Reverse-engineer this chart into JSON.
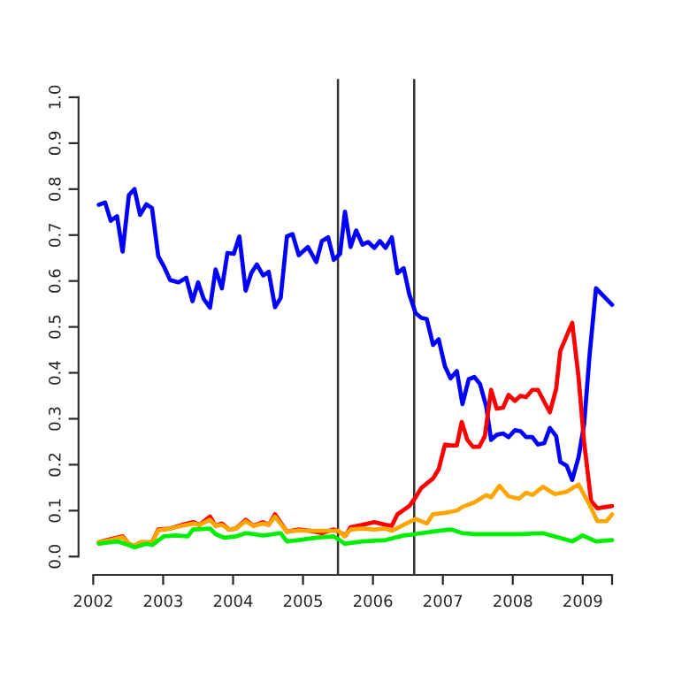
{
  "chart_data": {
    "type": "line",
    "xlim": [
      2001.79,
      2009.42
    ],
    "ylim": [
      -0.04,
      1.04
    ],
    "xticks": [
      2002,
      2003,
      2004,
      2005,
      2006,
      2007,
      2008,
      2009,
      {
        "value": 2009.42,
        "label": null
      }
    ],
    "yticks": [
      {
        "value": 0,
        "label": "0.0"
      },
      {
        "value": 0.1,
        "label": "0.1"
      },
      {
        "value": 0.2,
        "label": "0.2"
      },
      {
        "value": 0.3,
        "label": "0.3"
      },
      {
        "value": 0.4,
        "label": "0.4"
      },
      {
        "value": 0.5,
        "label": "0.5"
      },
      {
        "value": 0.6,
        "label": "0.6"
      },
      {
        "value": 0.7,
        "label": "0.7"
      },
      {
        "value": 0.8,
        "label": "0.8"
      },
      {
        "value": 0.9,
        "label": "0.9"
      },
      {
        "value": 1,
        "label": "1.0"
      }
    ],
    "grid": false,
    "marker": "none",
    "line_style": "solid",
    "ref_lines": [
      {
        "axis": "x",
        "value": 2005.5,
        "color": "#333333"
      },
      {
        "axis": "x",
        "value": 2006.59,
        "color": "#333333"
      }
    ],
    "series": [
      {
        "color": "#0000ff",
        "x": [
          2002.08,
          2002.17,
          2002.25,
          2002.34,
          2002.42,
          2002.51,
          2002.59,
          2002.67,
          2002.76,
          2002.84,
          2002.93,
          2003.01,
          2003.1,
          2003.22,
          2003.33,
          2003.42,
          2003.5,
          2003.58,
          2003.67,
          2003.75,
          2003.84,
          2003.92,
          2004.01,
          2004.09,
          2004.18,
          2004.26,
          2004.34,
          2004.43,
          2004.51,
          2004.6,
          2004.68,
          2004.77,
          2004.85,
          2004.94,
          2005.07,
          2005.19,
          2005.27,
          2005.36,
          2005.44,
          2005.53,
          2005.6,
          2005.68,
          2005.76,
          2005.85,
          2005.93,
          2006.02,
          2006.1,
          2006.18,
          2006.27,
          2006.35,
          2006.44,
          2006.52,
          2006.61,
          2006.69,
          2006.77,
          2006.86,
          2006.94,
          2007.03,
          2007.11,
          2007.2,
          2007.28,
          2007.37,
          2007.45,
          2007.53,
          2007.62,
          2007.69,
          2007.77,
          2007.86,
          2007.94,
          2008.03,
          2008.11,
          2008.19,
          2008.28,
          2008.36,
          2008.45,
          2008.53,
          2008.62,
          2008.68,
          2008.77,
          2008.85,
          2008.94,
          2009.02,
          2009.1,
          2009.19,
          2009.42
        ],
        "values": [
          0.766,
          0.771,
          0.731,
          0.741,
          0.664,
          0.787,
          0.8,
          0.744,
          0.767,
          0.759,
          0.654,
          0.632,
          0.602,
          0.597,
          0.607,
          0.556,
          0.597,
          0.561,
          0.542,
          0.625,
          0.584,
          0.661,
          0.659,
          0.697,
          0.579,
          0.617,
          0.636,
          0.612,
          0.62,
          0.543,
          0.563,
          0.697,
          0.702,
          0.656,
          0.674,
          0.641,
          0.687,
          0.695,
          0.646,
          0.659,
          0.751,
          0.674,
          0.71,
          0.679,
          0.685,
          0.672,
          0.687,
          0.672,
          0.695,
          0.617,
          0.628,
          0.571,
          0.53,
          0.52,
          0.517,
          0.461,
          0.473,
          0.414,
          0.388,
          0.404,
          0.332,
          0.386,
          0.391,
          0.376,
          0.327,
          0.254,
          0.265,
          0.268,
          0.26,
          0.275,
          0.273,
          0.26,
          0.26,
          0.244,
          0.247,
          0.28,
          0.262,
          0.206,
          0.198,
          0.167,
          0.216,
          0.288,
          0.442,
          0.584,
          0.548
        ]
      },
      {
        "color": "#ff0000",
        "x": [
          2002.08,
          2002.25,
          2002.42,
          2002.51,
          2002.59,
          2002.67,
          2002.84,
          2002.93,
          2003.1,
          2003.27,
          2003.43,
          2003.52,
          2003.67,
          2003.75,
          2003.84,
          2003.94,
          2004.04,
          2004.18,
          2004.29,
          2004.43,
          2004.51,
          2004.6,
          2004.77,
          2004.94,
          2005.1,
          2005.27,
          2005.44,
          2005.61,
          2005.68,
          2005.85,
          2006.02,
          2006.18,
          2006.27,
          2006.35,
          2006.52,
          2006.61,
          2006.69,
          2006.77,
          2006.86,
          2006.94,
          2007.03,
          2007.11,
          2007.2,
          2007.27,
          2007.35,
          2007.43,
          2007.52,
          2007.6,
          2007.69,
          2007.77,
          2007.86,
          2007.94,
          2008.03,
          2008.11,
          2008.19,
          2008.28,
          2008.36,
          2008.45,
          2008.53,
          2008.62,
          2008.68,
          2008.85,
          2008.94,
          2009.02,
          2009.12,
          2009.21,
          2009.42
        ],
        "values": [
          0.031,
          0.038,
          0.044,
          0.028,
          0.023,
          0.031,
          0.031,
          0.059,
          0.061,
          0.069,
          0.075,
          0.069,
          0.087,
          0.067,
          0.072,
          0.059,
          0.061,
          0.08,
          0.067,
          0.075,
          0.069,
          0.092,
          0.054,
          0.059,
          0.056,
          0.051,
          0.059,
          0.046,
          0.064,
          0.069,
          0.075,
          0.069,
          0.067,
          0.092,
          0.11,
          0.129,
          0.149,
          0.159,
          0.17,
          0.19,
          0.244,
          0.242,
          0.242,
          0.293,
          0.254,
          0.239,
          0.239,
          0.262,
          0.363,
          0.322,
          0.324,
          0.352,
          0.339,
          0.35,
          0.347,
          0.363,
          0.363,
          0.337,
          0.314,
          0.365,
          0.448,
          0.509,
          0.391,
          0.249,
          0.121,
          0.105,
          0.11
        ]
      },
      {
        "color": "#ffa500",
        "x": [
          2002.08,
          2002.25,
          2002.42,
          2002.51,
          2002.59,
          2002.67,
          2002.84,
          2002.93,
          2003.1,
          2003.27,
          2003.43,
          2003.52,
          2003.67,
          2003.75,
          2003.84,
          2003.94,
          2004.04,
          2004.18,
          2004.29,
          2004.43,
          2004.51,
          2004.6,
          2004.77,
          2004.94,
          2005.1,
          2005.22,
          2005.51,
          2005.59,
          2005.68,
          2005.85,
          2006.02,
          2006.18,
          2006.27,
          2006.44,
          2006.61,
          2006.77,
          2006.86,
          2007.03,
          2007.2,
          2007.28,
          2007.45,
          2007.62,
          2007.69,
          2007.81,
          2007.94,
          2008.09,
          2008.19,
          2008.28,
          2008.43,
          2008.6,
          2008.77,
          2008.94,
          2009.09,
          2009.21,
          2009.34,
          2009.42
        ],
        "values": [
          0.031,
          0.036,
          0.042,
          0.028,
          0.023,
          0.031,
          0.031,
          0.057,
          0.061,
          0.067,
          0.072,
          0.069,
          0.08,
          0.067,
          0.069,
          0.059,
          0.061,
          0.077,
          0.067,
          0.072,
          0.069,
          0.087,
          0.054,
          0.057,
          0.056,
          0.056,
          0.056,
          0.044,
          0.059,
          0.061,
          0.059,
          0.061,
          0.056,
          0.069,
          0.082,
          0.072,
          0.092,
          0.095,
          0.1,
          0.108,
          0.118,
          0.134,
          0.129,
          0.154,
          0.131,
          0.126,
          0.139,
          0.134,
          0.152,
          0.136,
          0.141,
          0.157,
          0.115,
          0.077,
          0.077,
          0.092
        ]
      },
      {
        "color": "#00ee00",
        "x": [
          2002.08,
          2002.34,
          2002.51,
          2002.59,
          2002.76,
          2002.84,
          2003.01,
          2003.18,
          2003.35,
          2003.43,
          2003.67,
          2003.75,
          2003.87,
          2004.04,
          2004.18,
          2004.43,
          2004.68,
          2004.77,
          2004.94,
          2005.19,
          2005.44,
          2005.6,
          2005.85,
          2006.18,
          2006.44,
          2006.61,
          2006.94,
          2007.11,
          2007.28,
          2007.45,
          2007.79,
          2008.13,
          2008.43,
          2008.85,
          2009.0,
          2009.19,
          2009.42
        ],
        "values": [
          0.028,
          0.033,
          0.025,
          0.02,
          0.028,
          0.025,
          0.044,
          0.046,
          0.044,
          0.059,
          0.061,
          0.049,
          0.041,
          0.044,
          0.051,
          0.046,
          0.051,
          0.033,
          0.036,
          0.041,
          0.044,
          0.028,
          0.033,
          0.036,
          0.046,
          0.049,
          0.056,
          0.059,
          0.051,
          0.049,
          0.049,
          0.049,
          0.051,
          0.033,
          0.046,
          0.033,
          0.036
        ]
      }
    ]
  }
}
